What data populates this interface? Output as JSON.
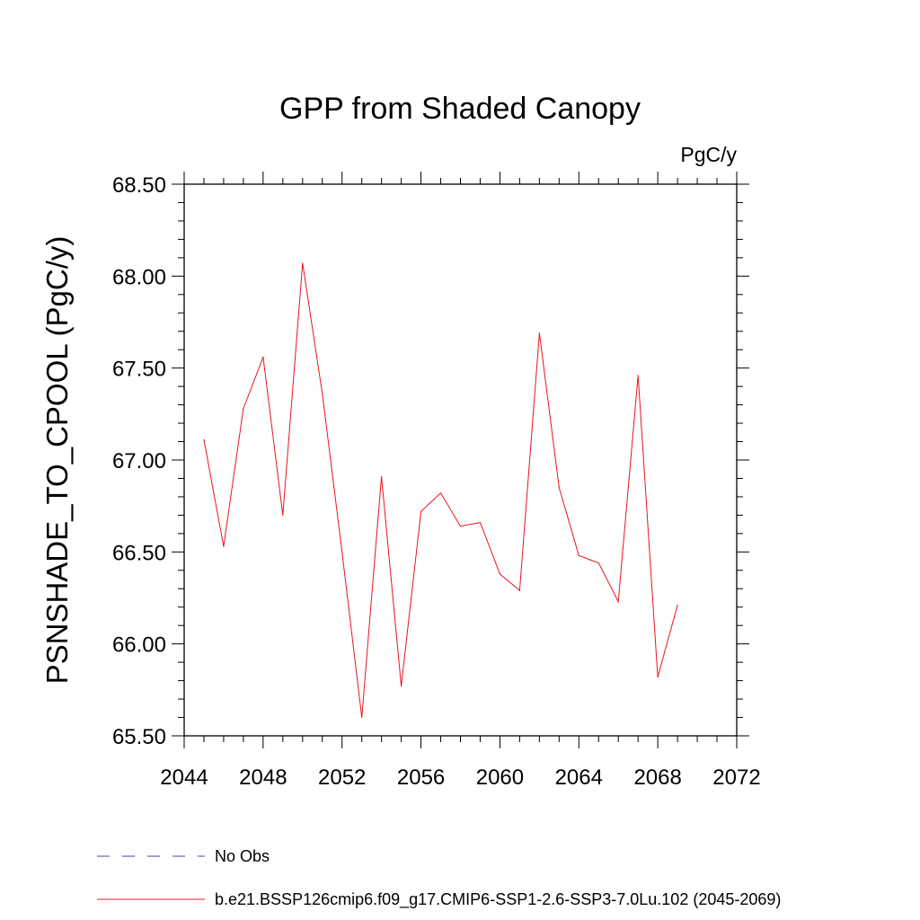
{
  "chart_data": {
    "type": "line",
    "title": "GPP from Shaded Canopy",
    "units_label": "PgC/y",
    "ylabel": "PSNSHADE_TO_CPOOL  (PgC/y)",
    "xlabel": "",
    "xlim": [
      2044,
      2072
    ],
    "ylim": [
      65.5,
      68.5
    ],
    "x_ticks": [
      2044,
      2048,
      2052,
      2056,
      2060,
      2064,
      2068,
      2072
    ],
    "x_tick_labels": [
      "2044",
      "2048",
      "2052",
      "2056",
      "2060",
      "2064",
      "2068",
      "2072"
    ],
    "y_ticks": [
      65.5,
      66.0,
      66.5,
      67.0,
      67.5,
      68.0,
      68.5
    ],
    "y_tick_labels": [
      "65.50",
      "66.00",
      "66.50",
      "67.00",
      "67.50",
      "68.00",
      "68.50"
    ],
    "grid": false,
    "legend_position": "bottom",
    "series": [
      {
        "name": "b.e21.BSSP126cmip6.f09_g17.CMIP6-SSP1-2.6-SSP3-7.0Lu.102 (2045-2069)",
        "color": "#e8141c",
        "x": [
          2045,
          2046,
          2047,
          2048,
          2049,
          2050,
          2051,
          2052,
          2053,
          2054,
          2055,
          2056,
          2057,
          2058,
          2059,
          2060,
          2061,
          2062,
          2063,
          2064,
          2065,
          2066,
          2067,
          2068,
          2069
        ],
        "values": [
          67.11,
          66.53,
          67.28,
          67.56,
          66.7,
          68.07,
          67.36,
          66.5,
          65.6,
          66.91,
          65.77,
          66.72,
          66.82,
          66.64,
          66.66,
          66.38,
          66.29,
          67.69,
          66.85,
          66.48,
          66.44,
          66.23,
          67.46,
          65.82,
          66.21
        ]
      }
    ],
    "legend": [
      {
        "label": "No Obs",
        "color": "#4b3fa8",
        "style": "dashed"
      },
      {
        "label": "b.e21.BSSP126cmip6.f09_g17.CMIP6-SSP1-2.6-SSP3-7.0Lu.102 (2045-2069)",
        "color": "#e8141c",
        "style": "solid"
      }
    ]
  }
}
